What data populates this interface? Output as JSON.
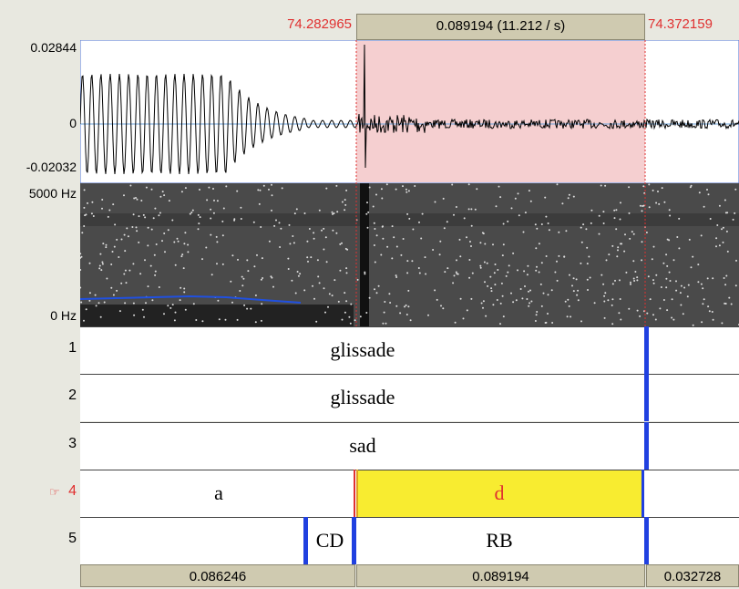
{
  "top_bar": {
    "start_time": "74.282965",
    "selection": "0.089194 (11.212 / s)",
    "end_time": "74.372159"
  },
  "waveform": {
    "max_label": "0.02844",
    "zero_label": "0",
    "min_label": "-0.02032"
  },
  "spectrogram": {
    "max_label": "5000 Hz",
    "min_label": "0 Hz"
  },
  "tiers": [
    {
      "number": "1",
      "intervals": [
        "glissade"
      ]
    },
    {
      "number": "2",
      "intervals": [
        "glissade"
      ]
    },
    {
      "number": "3",
      "intervals": [
        "sad"
      ]
    },
    {
      "marker": "☞",
      "number": "4",
      "intervals": [
        "a",
        "d"
      ]
    },
    {
      "number": "5",
      "intervals": [
        "CD",
        "RB"
      ]
    }
  ],
  "bottom_bar": [
    "0.086246",
    "0.089194",
    "0.032728"
  ]
}
